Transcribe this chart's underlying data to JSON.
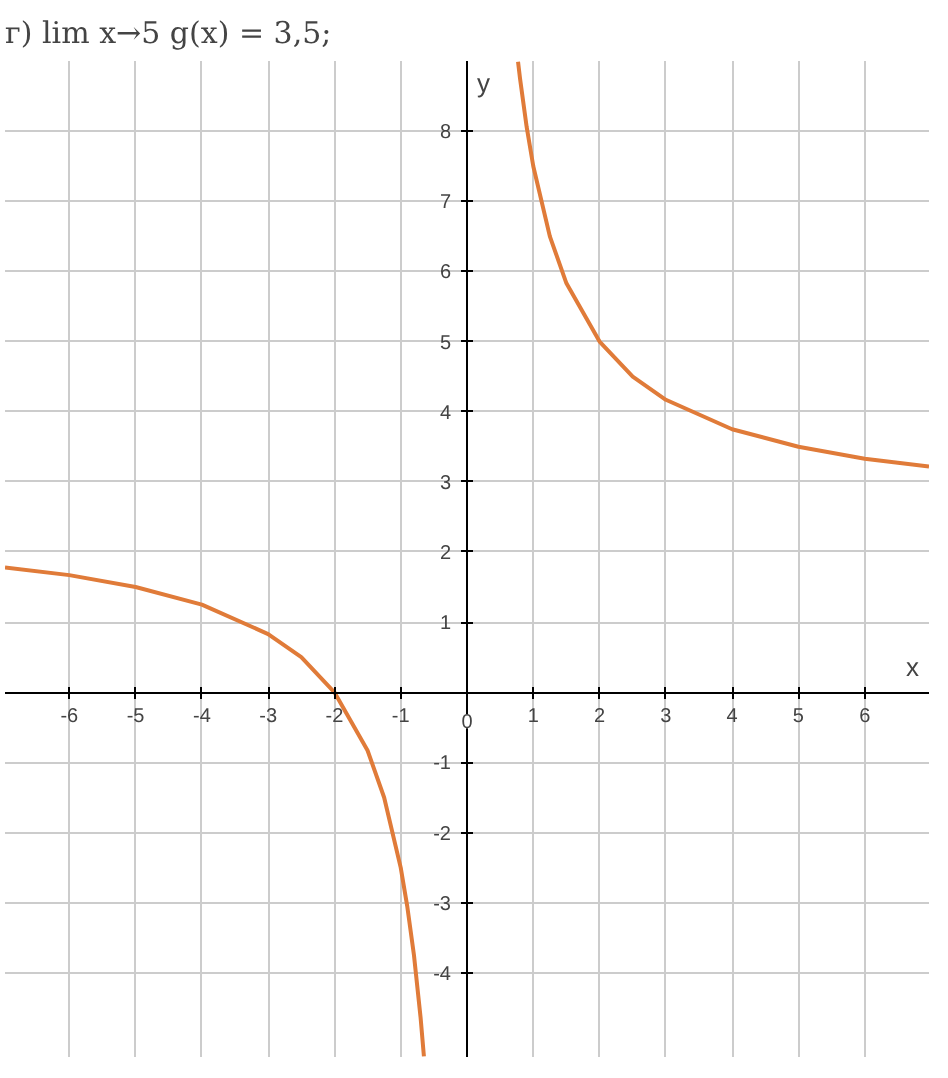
{
  "chart_data": {
    "type": "line",
    "title": "г) lim x→5 g(x) = 3,5;",
    "xlabel": "x",
    "ylabel": "y",
    "xlim": [
      -6.97,
      6.97
    ],
    "ylim": [
      -5.2,
      9
    ],
    "xticks": [
      -6,
      -5,
      -4,
      -3,
      -2,
      -1,
      0,
      1,
      2,
      3,
      4,
      5,
      6
    ],
    "yticks": [
      -4,
      -3,
      -2,
      -1,
      1,
      2,
      3,
      4,
      5,
      6,
      7,
      8
    ],
    "grid": true,
    "marker": "none",
    "line_style": "solid",
    "series": [
      {
        "color": "#e07b39",
        "x": [
          -6.97,
          -6,
          -5,
          -4,
          -3,
          -2.5,
          -2,
          -1.5,
          -1.25,
          -1,
          -0.9,
          -0.8,
          -0.7,
          -0.65
        ],
        "values": [
          1.78,
          1.67,
          1.5,
          1.25,
          0.83,
          0.5,
          0,
          -0.83,
          -1.5,
          -2.5,
          -3.06,
          -3.75,
          -4.64,
          -5.19
        ]
      },
      {
        "color": "#e07b39",
        "x": [
          0.77,
          0.8,
          0.9,
          1,
          1.25,
          1.5,
          2,
          2.5,
          3,
          4,
          5,
          6,
          6.97
        ],
        "values": [
          8.99,
          8.75,
          8.06,
          7.5,
          6.5,
          5.83,
          5,
          4.5,
          4.17,
          3.75,
          3.5,
          3.33,
          3.22
        ]
      }
    ]
  }
}
